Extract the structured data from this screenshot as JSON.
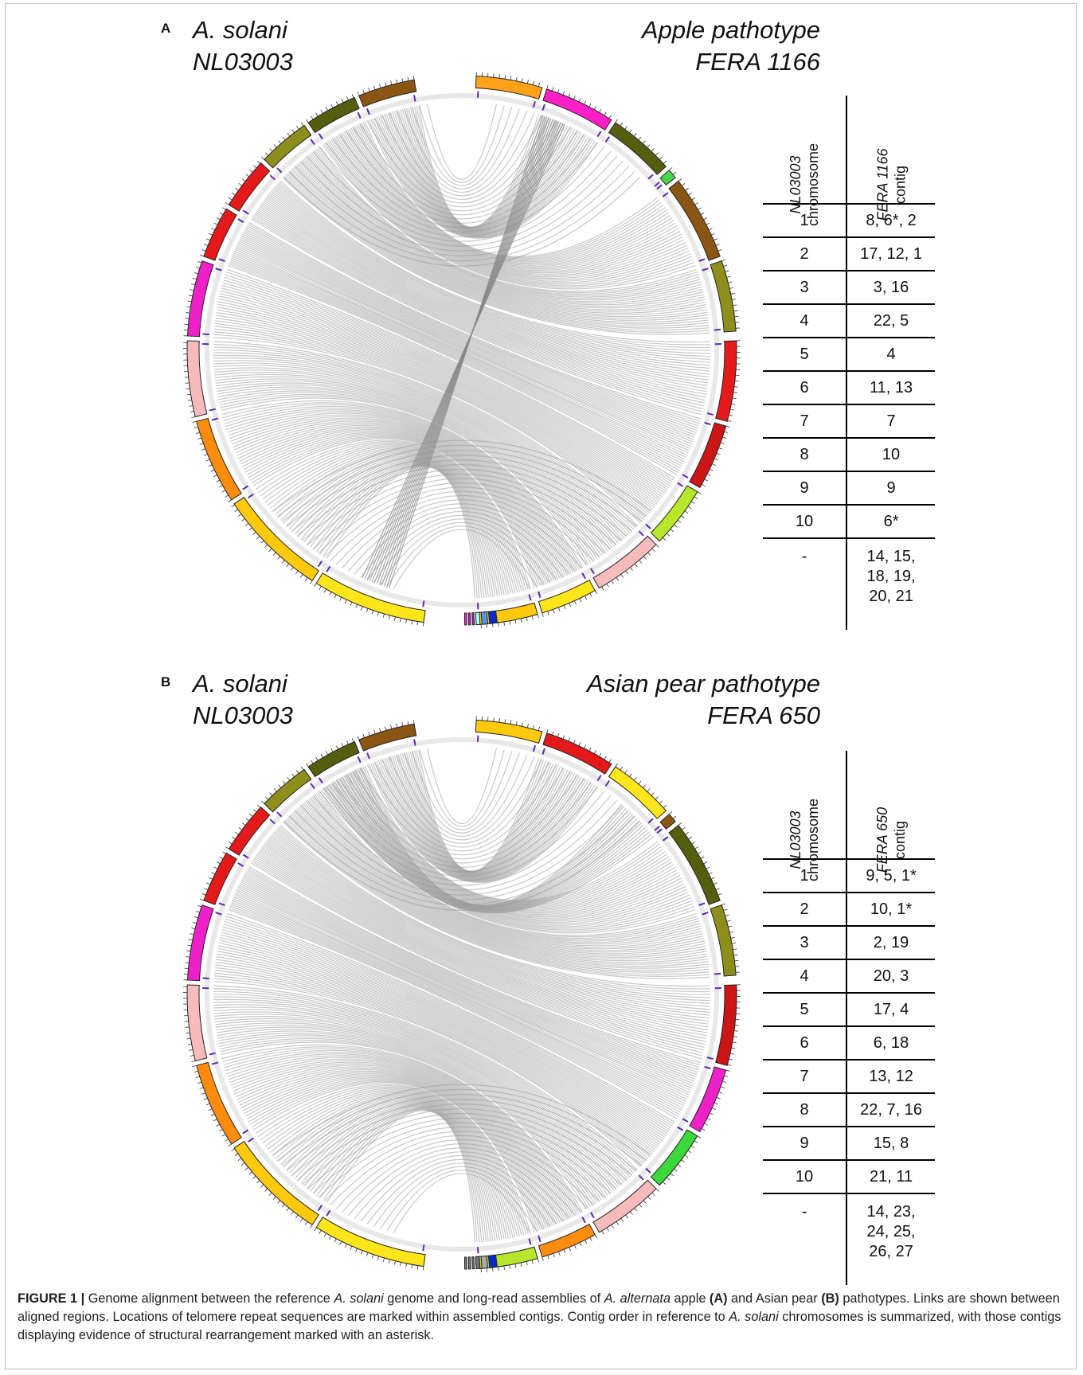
{
  "panels": [
    {
      "letter": "A",
      "left_title": [
        "A. solani",
        "NL03003"
      ],
      "right_title": [
        "Apple pathotype",
        "FERA 1166"
      ],
      "table": {
        "header_col1": "NL03003 chromosome",
        "header_col1_italic": "NL03003",
        "header_col1_plain": "chromosome",
        "header_col2_italic": "FERA 1166",
        "header_col2_plain": "contig",
        "rows": [
          {
            "chromosome": "1",
            "contigs": "8, 6*, 2"
          },
          {
            "chromosome": "2",
            "contigs": "17, 12, 1"
          },
          {
            "chromosome": "3",
            "contigs": "3, 16"
          },
          {
            "chromosome": "4",
            "contigs": "22, 5"
          },
          {
            "chromosome": "5",
            "contigs": "4"
          },
          {
            "chromosome": "6",
            "contigs": "11, 13"
          },
          {
            "chromosome": "7",
            "contigs": "7"
          },
          {
            "chromosome": "8",
            "contigs": "10"
          },
          {
            "chromosome": "9",
            "contigs": "9"
          },
          {
            "chromosome": "10",
            "contigs": "6*"
          }
        ],
        "unplaced": {
          "chromosome": "-",
          "lines": [
            "14, 15,",
            "18, 19,",
            "20, 21"
          ]
        }
      },
      "left_colors": [
        "#8B5513",
        "#555E0F",
        "#8E8E1C",
        "#E41A1A",
        "#E41A1A",
        "#EE20C8",
        "#F7BBBB",
        "#FF8C0E",
        "#FFC90E",
        "#FFE61A"
      ],
      "right_colors": [
        "#FFA21A",
        "#FF1FC8",
        "#555E0F",
        "#47D84A",
        "#8B5513",
        "#8E8E1C",
        "#E41A1A",
        "#CC1515",
        "#B8E62A",
        "#F7BBBB",
        "#FFE61A",
        "#FFC90E"
      ],
      "small_colors": [
        "#FF20D0",
        "#CC1AD0",
        "#AA22C8",
        "#AAFFFF",
        "#5599EE",
        "#0A2AC8"
      ]
    },
    {
      "letter": "B",
      "left_title": [
        "A. solani",
        "NL03003"
      ],
      "right_title": [
        "Asian pear pathotype",
        "FERA 650"
      ],
      "table": {
        "header_col1_italic": "NL03003",
        "header_col1_plain": "chromosome",
        "header_col2_italic": "FERA 650",
        "header_col2_plain": "contig",
        "rows": [
          {
            "chromosome": "1",
            "contigs": "9, 5, 1*"
          },
          {
            "chromosome": "2",
            "contigs": "10, 1*"
          },
          {
            "chromosome": "3",
            "contigs": "2, 19"
          },
          {
            "chromosome": "4",
            "contigs": "20, 3"
          },
          {
            "chromosome": "5",
            "contigs": "17, 4"
          },
          {
            "chromosome": "6",
            "contigs": "6, 18"
          },
          {
            "chromosome": "7",
            "contigs": "13, 12"
          },
          {
            "chromosome": "8",
            "contigs": "22, 7, 16"
          },
          {
            "chromosome": "9",
            "contigs": "15, 8"
          },
          {
            "chromosome": "10",
            "contigs": "21, 11"
          }
        ],
        "unplaced": {
          "chromosome": "-",
          "lines": [
            "14, 23,",
            "24, 25,",
            "26, 27"
          ]
        }
      },
      "left_colors": [
        "#8B5513",
        "#555E0F",
        "#8E8E1C",
        "#E41A1A",
        "#E41A1A",
        "#EE20C8",
        "#F7BBBB",
        "#FF8C0E",
        "#FFC90E",
        "#FFE61A"
      ],
      "right_colors": [
        "#FFC90E",
        "#E41A1A",
        "#FFE61A",
        "#8B5513",
        "#555E0F",
        "#8E8E1C",
        "#CC1515",
        "#EE20C8",
        "#3DD83A",
        "#F7BBBB",
        "#FF8C0E",
        "#B8E62A"
      ],
      "small_colors": [
        "#777777",
        "#777777",
        "#777777",
        "#777777",
        "#AAAAAA",
        "#0A2AC8"
      ]
    }
  ],
  "caption": {
    "label": "FIGURE 1 |",
    "text_parts": [
      " Genome alignment between the reference ",
      "A. solani",
      " genome and long-read assemblies of ",
      "A. alternata",
      " apple ",
      "(A)",
      " and Asian pear ",
      "(B)",
      " pathotypes. Links are shown between aligned regions. Locations of telomere repeat sequences are marked within assembled contigs. Contig order in reference to ",
      "A. solani",
      " chromosomes is summarized, with those contigs displaying evidence of structural rearrangement marked with an asterisk."
    ]
  }
}
